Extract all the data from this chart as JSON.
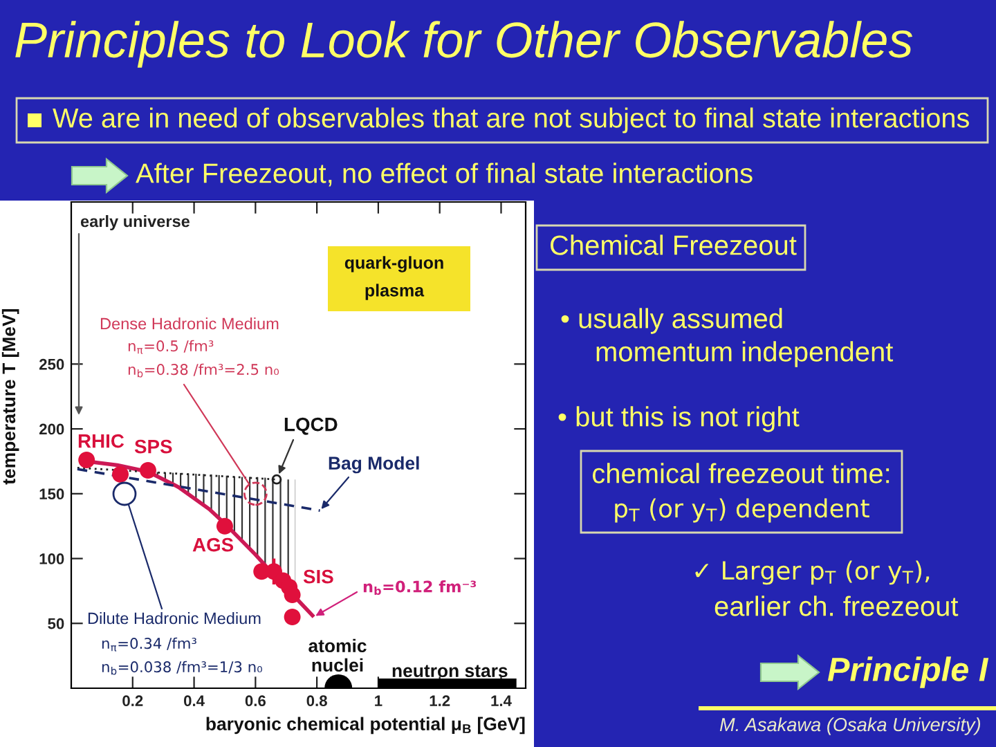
{
  "chart_data": {
    "type": "line",
    "title": "Principles to Look for Other Observables",
    "xlabel": "baryonic chemical potential μ$_{B}$ [GeV]",
    "ylabel": "temperature T [MeV]",
    "xlim": [
      0,
      1.48
    ],
    "ylim": [
      0,
      375
    ],
    "xticks": [
      0.2,
      0.4,
      0.6,
      0.8,
      1,
      1.2,
      1.4
    ],
    "yticks": [
      50,
      100,
      150,
      200,
      250
    ],
    "series": [
      {
        "color": "#cc1955",
        "x": [
          0.05,
          0.15,
          0.25,
          0.35,
          0.45,
          0.5,
          0.55,
          0.6,
          0.65,
          0.7,
          0.73,
          0.79
        ],
        "values": [
          175,
          172,
          167,
          155,
          138,
          127,
          115,
          103,
          90,
          77,
          70,
          55
        ],
        "lower": [
          null,
          null,
          167,
          155,
          138,
          127,
          115,
          103,
          90,
          77,
          70,
          null
        ],
        "upper": [
          null,
          null,
          167,
          166,
          165,
          164,
          163,
          163,
          162,
          161,
          161,
          null
        ]
      },
      {
        "color": "#222222",
        "line_style": "dotted",
        "x": [
          0.02,
          0.669
        ],
        "values": [
          170,
          161
        ]
      },
      {
        "color": "#1a2a6a",
        "line_style": "dashed",
        "x": [
          0.02,
          0.81
        ],
        "values": [
          169,
          137
        ]
      },
      {
        "type": "scatter",
        "color": "#e0103c",
        "marker": "circle",
        "x": [
          0.05,
          0.16,
          0.25,
          0.5,
          0.62,
          0.66,
          0.69,
          0.71,
          0.72,
          0.72
        ],
        "values": [
          176,
          165,
          168,
          125,
          90,
          90,
          83,
          78,
          72,
          55
        ],
        "errors": [
          null,
          null,
          null,
          null,
          null,
          10,
          5,
          null,
          null,
          null
        ]
      },
      {
        "type": "scatter",
        "color": "#000000",
        "marker": "circle",
        "x": [
          0.87
        ],
        "values": [
          0
        ]
      },
      {
        "color": "#000000",
        "x": [
          1.0,
          1.45
        ],
        "values": [
          0,
          0
        ]
      }
    ],
    "annotations": [
      "We are in need of observables that are not subject to final state interactions",
      "After Freezeout, no effect of final state interactions",
      "early universe",
      "quark-gluon\nplasma",
      {
        "text": "Dense Hadronic Medium\nn$_{π}$=0.5 /fm³\nn$_{b}$=0.38 /fm³=2.5 n₀",
        "x": 0.6,
        "y": 150
      },
      {
        "text": "LQCD",
        "x": 0.669,
        "y": 161
      },
      {
        "text": "Bag Model",
        "x": 0.81,
        "y": 137
      },
      {
        "text": "RHIC",
        "x": 0.05,
        "y": 176
      },
      {
        "text": "SPS",
        "x": 0.25,
        "y": 168
      },
      {
        "text": "AGS",
        "x": 0.5,
        "y": 125
      },
      {
        "text": "SIS",
        "x": 0.71,
        "y": 78
      },
      {
        "text": "n$_{b}$=0.12 fm⁻³",
        "x": 0.79,
        "y": 55
      },
      "Dilute Hadronic Medium\nn$_{π}$=0.34 /fm³\nn$_{b}$=0.038 /fm³=1/3 n₀",
      "atomic\nnuclei",
      "neutron stars",
      "Chemical Freezeout",
      "• usually assumed\nmomentum independent",
      "• but this is not right",
      "chemical freezeout time:\np$_{T}$ (or y$_{T}$) dependent",
      "✓ Larger p$_{T}$ (or y$_{T}$),\nearlier ch. freezeout",
      "Principle I",
      "M. Asakawa (Osaka University)"
    ]
  }
}
